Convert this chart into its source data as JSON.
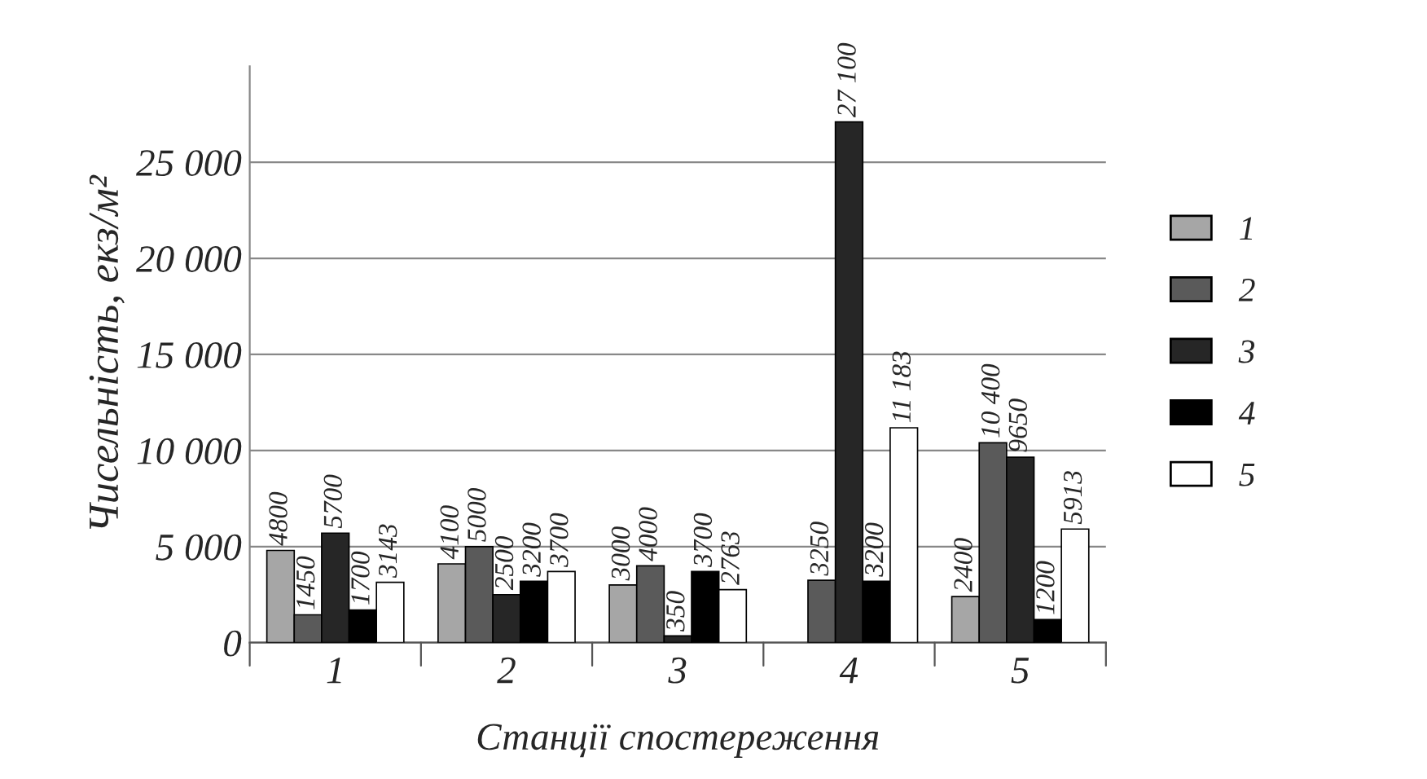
{
  "chart_data": {
    "type": "bar",
    "xlabel": "Станції спостереження",
    "ylabel": "Чисельність, екз/м²",
    "categories": [
      "1",
      "2",
      "3",
      "4",
      "5"
    ],
    "series": [
      {
        "name": "1",
        "color": "#a6a6a6",
        "values": [
          4800,
          4100,
          3000,
          null,
          2400
        ],
        "value_labels": [
          "4800",
          "4100",
          "3000",
          null,
          "2400"
        ]
      },
      {
        "name": "2",
        "color": "#5a5a5a",
        "values": [
          1450,
          5000,
          4000,
          3250,
          10400
        ],
        "value_labels": [
          "1450",
          "5000",
          "4000",
          "3250",
          "10 400"
        ]
      },
      {
        "name": "3",
        "color": "#262626",
        "values": [
          5700,
          2500,
          350,
          27100,
          9650
        ],
        "value_labels": [
          "5700",
          "2500",
          "350",
          "27 100",
          "9650"
        ]
      },
      {
        "name": "4",
        "color": "#000000",
        "values": [
          1700,
          3200,
          3700,
          3200,
          1200
        ],
        "value_labels": [
          "1700",
          "3200",
          "3700",
          "3200",
          "1200"
        ]
      },
      {
        "name": "5",
        "color": "#ffffff",
        "values": [
          3143,
          3700,
          2763,
          11183,
          5913
        ],
        "value_labels": [
          "3143",
          "3700",
          "2763",
          "11 183",
          "5913"
        ]
      }
    ],
    "ylim": [
      0,
      30000
    ],
    "yticks": [
      {
        "value": 0,
        "label": "0"
      },
      {
        "value": 5000,
        "label": "5 000"
      },
      {
        "value": 10000,
        "label": "10 000"
      },
      {
        "value": 15000,
        "label": "15 000"
      },
      {
        "value": 20000,
        "label": "20 000"
      },
      {
        "value": 25000,
        "label": "25 000"
      }
    ],
    "grid": "y",
    "legend": "right"
  }
}
